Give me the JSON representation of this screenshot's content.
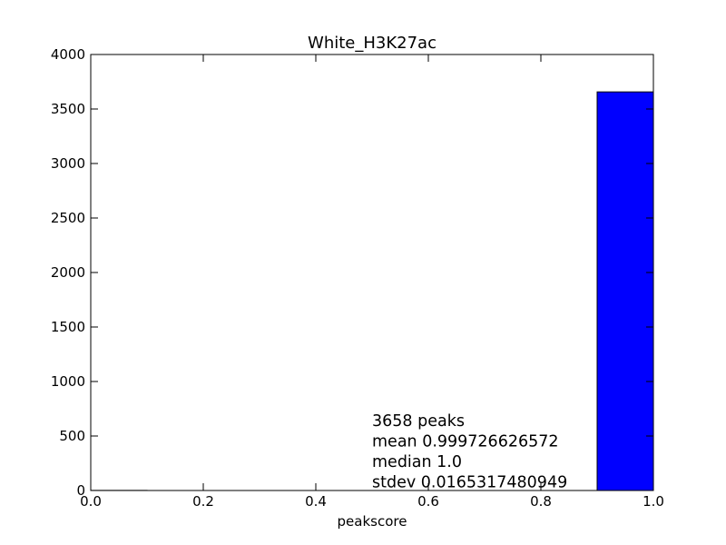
{
  "chart_data": {
    "type": "bar",
    "title": "White_H3K27ac",
    "xlabel": "peakscore",
    "ylabel": "",
    "xlim": [
      0.0,
      1.0
    ],
    "ylim": [
      0,
      4000
    ],
    "grid": false,
    "x_ticks": [
      "0.0",
      "0.2",
      "0.4",
      "0.6",
      "0.8",
      "1.0"
    ],
    "y_ticks": [
      "0",
      "500",
      "1000",
      "1500",
      "2000",
      "2500",
      "3000",
      "3500",
      "4000"
    ],
    "bins": [
      {
        "start": 0.0,
        "end": 0.1,
        "value": 1
      },
      {
        "start": 0.1,
        "end": 0.2,
        "value": 0
      },
      {
        "start": 0.2,
        "end": 0.3,
        "value": 0
      },
      {
        "start": 0.3,
        "end": 0.4,
        "value": 0
      },
      {
        "start": 0.4,
        "end": 0.5,
        "value": 0
      },
      {
        "start": 0.5,
        "end": 0.6,
        "value": 0
      },
      {
        "start": 0.6,
        "end": 0.7,
        "value": 0
      },
      {
        "start": 0.7,
        "end": 0.8,
        "value": 0
      },
      {
        "start": 0.8,
        "end": 0.9,
        "value": 0
      },
      {
        "start": 0.9,
        "end": 1.0,
        "value": 3657
      }
    ],
    "bar_color": "#0000ff",
    "annotations": [
      "3658 peaks",
      "mean 0.999726626572",
      "median 1.0",
      "stdev 0.0165317480949"
    ]
  }
}
